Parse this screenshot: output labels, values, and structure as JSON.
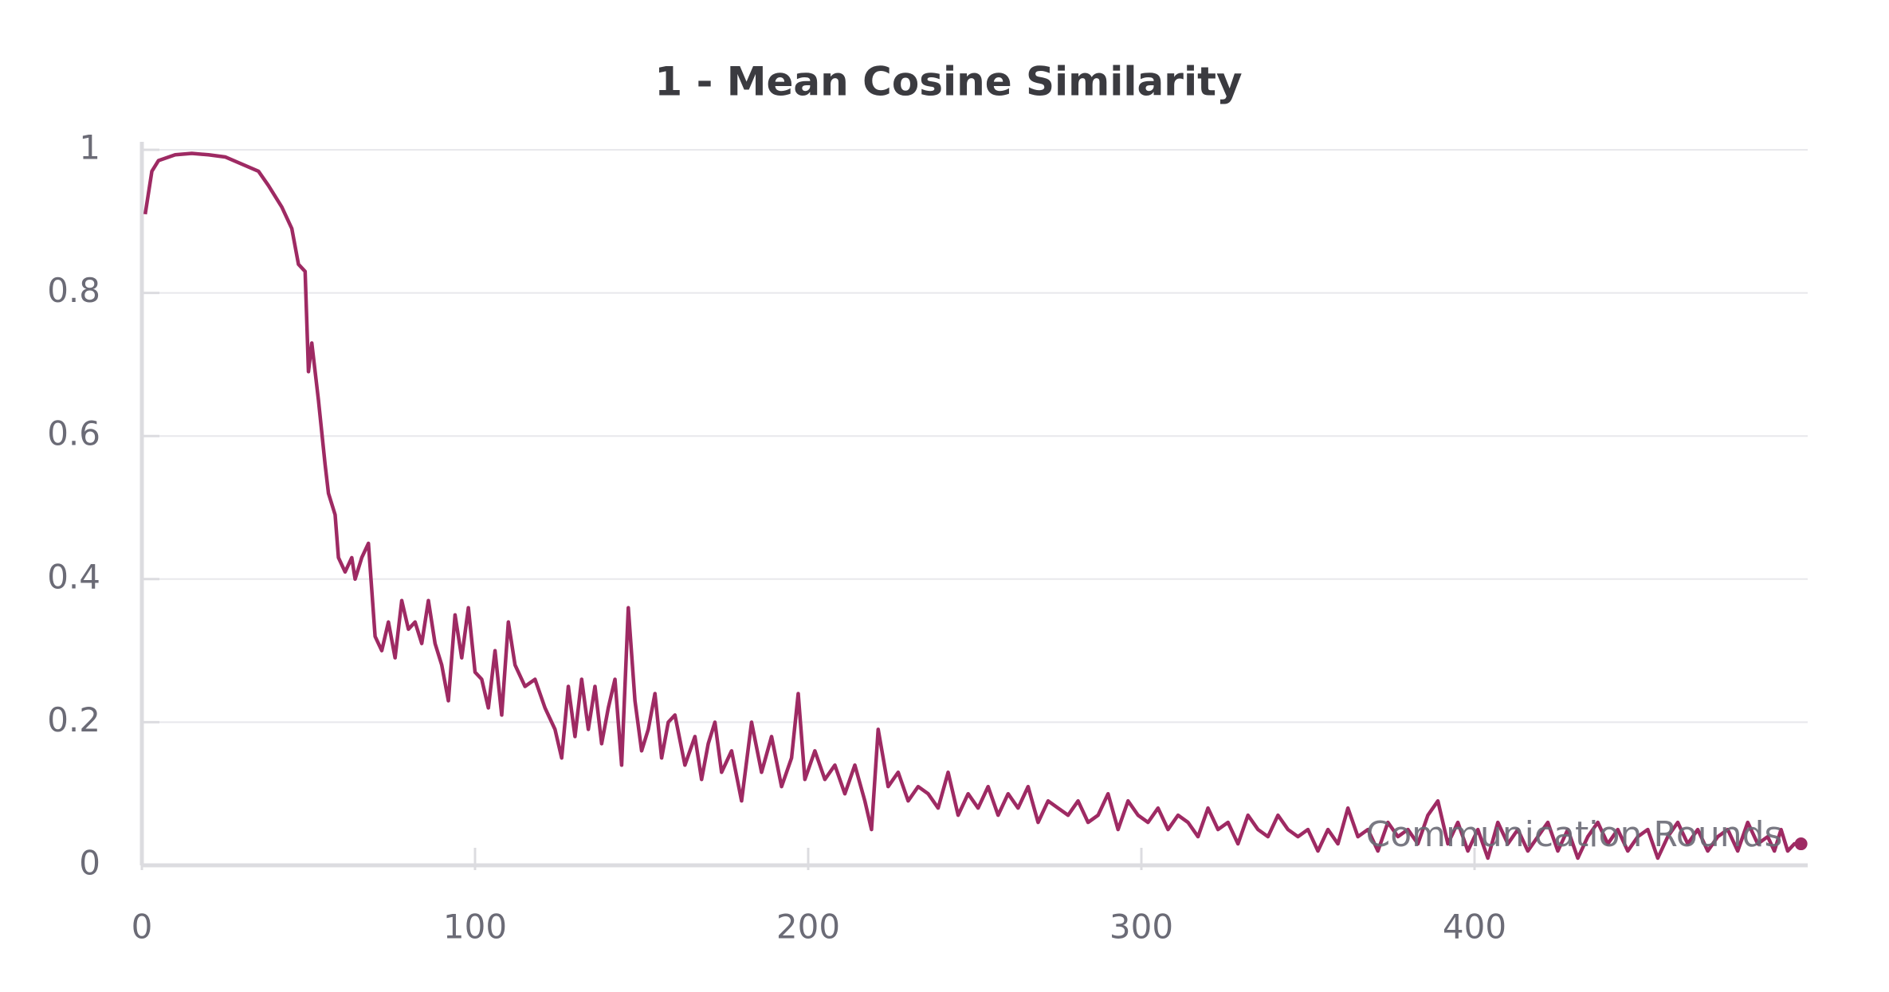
{
  "chart_data": {
    "type": "line",
    "title": "1 - Mean Cosine Similarity",
    "x_label": "Communication Rounds",
    "xlim": [
      0,
      500
    ],
    "ylim": [
      0,
      1
    ],
    "xticks": [
      0,
      100,
      200,
      300,
      400
    ],
    "yticks": [
      0,
      0.2,
      0.4,
      0.6,
      0.8,
      1
    ],
    "grid": true,
    "series": [
      {
        "name": "1 - Mean Cosine Similarity",
        "color": "#9e2a63",
        "x": [
          1,
          3,
          5,
          10,
          15,
          20,
          25,
          30,
          35,
          38,
          42,
          45,
          47,
          49,
          50,
          51,
          53,
          55,
          56,
          58,
          59,
          61,
          63,
          64,
          66,
          68,
          70,
          72,
          74,
          76,
          78,
          80,
          82,
          84,
          86,
          88,
          90,
          92,
          94,
          96,
          98,
          100,
          102,
          104,
          106,
          108,
          110,
          112,
          115,
          118,
          121,
          124,
          126,
          128,
          130,
          132,
          134,
          136,
          138,
          140,
          142,
          144,
          146,
          148,
          150,
          152,
          154,
          156,
          158,
          160,
          163,
          166,
          168,
          170,
          172,
          174,
          177,
          180,
          183,
          186,
          189,
          192,
          195,
          197,
          199,
          202,
          205,
          208,
          211,
          214,
          217,
          219,
          221,
          224,
          227,
          230,
          233,
          236,
          239,
          242,
          245,
          248,
          251,
          254,
          257,
          260,
          263,
          266,
          269,
          272,
          275,
          278,
          281,
          284,
          287,
          290,
          293,
          296,
          299,
          302,
          305,
          308,
          311,
          314,
          317,
          320,
          323,
          326,
          329,
          332,
          335,
          338,
          341,
          344,
          347,
          350,
          353,
          356,
          359,
          362,
          365,
          368,
          371,
          374,
          377,
          380,
          383,
          386,
          389,
          392,
          395,
          398,
          401,
          404,
          407,
          410,
          413,
          416,
          419,
          422,
          425,
          428,
          431,
          434,
          437,
          440,
          443,
          446,
          449,
          452,
          455,
          458,
          461,
          464,
          467,
          470,
          473,
          476,
          479,
          482,
          485,
          488,
          490,
          492,
          494,
          496,
          498
        ],
        "values": [
          0.91,
          0.97,
          0.985,
          0.993,
          0.995,
          0.993,
          0.99,
          0.98,
          0.97,
          0.95,
          0.92,
          0.89,
          0.84,
          0.83,
          0.69,
          0.73,
          0.65,
          0.56,
          0.52,
          0.49,
          0.43,
          0.41,
          0.43,
          0.4,
          0.43,
          0.45,
          0.32,
          0.3,
          0.34,
          0.29,
          0.37,
          0.33,
          0.34,
          0.31,
          0.37,
          0.31,
          0.28,
          0.23,
          0.35,
          0.29,
          0.36,
          0.27,
          0.26,
          0.22,
          0.3,
          0.21,
          0.34,
          0.28,
          0.25,
          0.26,
          0.22,
          0.19,
          0.15,
          0.25,
          0.18,
          0.26,
          0.19,
          0.25,
          0.17,
          0.22,
          0.26,
          0.14,
          0.36,
          0.23,
          0.16,
          0.19,
          0.24,
          0.15,
          0.2,
          0.21,
          0.14,
          0.18,
          0.12,
          0.17,
          0.2,
          0.13,
          0.16,
          0.09,
          0.2,
          0.13,
          0.18,
          0.11,
          0.15,
          0.24,
          0.12,
          0.16,
          0.12,
          0.14,
          0.1,
          0.14,
          0.09,
          0.05,
          0.19,
          0.11,
          0.13,
          0.09,
          0.11,
          0.1,
          0.08,
          0.13,
          0.07,
          0.1,
          0.08,
          0.11,
          0.07,
          0.1,
          0.08,
          0.11,
          0.06,
          0.09,
          0.08,
          0.07,
          0.09,
          0.06,
          0.07,
          0.1,
          0.05,
          0.09,
          0.07,
          0.06,
          0.08,
          0.05,
          0.07,
          0.06,
          0.04,
          0.08,
          0.05,
          0.06,
          0.03,
          0.07,
          0.05,
          0.04,
          0.07,
          0.05,
          0.04,
          0.05,
          0.02,
          0.05,
          0.03,
          0.08,
          0.04,
          0.05,
          0.02,
          0.06,
          0.04,
          0.05,
          0.03,
          0.07,
          0.09,
          0.03,
          0.06,
          0.02,
          0.05,
          0.01,
          0.06,
          0.03,
          0.05,
          0.02,
          0.04,
          0.06,
          0.02,
          0.05,
          0.01,
          0.04,
          0.06,
          0.03,
          0.05,
          0.02,
          0.04,
          0.05,
          0.01,
          0.04,
          0.06,
          0.03,
          0.05,
          0.02,
          0.04,
          0.05,
          0.02,
          0.06,
          0.03,
          0.04,
          0.02,
          0.05,
          0.02,
          0.03,
          0.03
        ]
      }
    ]
  }
}
